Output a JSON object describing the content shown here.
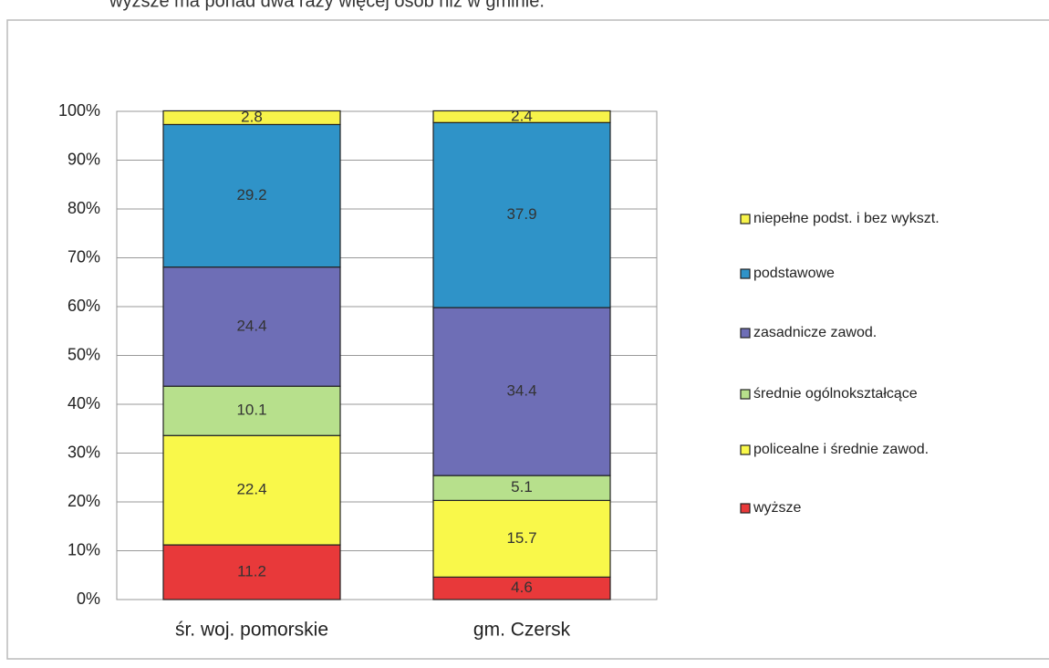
{
  "chart_data": {
    "type": "stacked_bar",
    "caption": "wyższe ma ponad dwa razy więcej osób niż w gminie.",
    "categories": [
      "śr. woj. pomorskie",
      "gm. Czersk"
    ],
    "series": [
      {
        "name": "wyższe",
        "color": "#e8393a",
        "values": [
          11.2,
          4.6
        ]
      },
      {
        "name": "policealne i średnie zawod.",
        "color": "#f9f84a",
        "values": [
          22.4,
          15.7
        ]
      },
      {
        "name": "średnie ogólnokształcące",
        "color": "#b7e08c",
        "values": [
          10.1,
          5.1
        ]
      },
      {
        "name": "zasadnicze zawod.",
        "color": "#6e6eb6",
        "values": [
          24.4,
          34.4
        ]
      },
      {
        "name": "podstawowe",
        "color": "#2f93c8",
        "values": [
          29.2,
          37.9
        ]
      },
      {
        "name": "niepełne podst. i bez wykszt.",
        "color": "#f7f34a",
        "values": [
          2.8,
          2.4
        ]
      }
    ],
    "ylim": [
      0,
      100
    ],
    "yticks": [
      {
        "value": 0,
        "label": "0%"
      },
      {
        "value": 10,
        "label": "10%"
      },
      {
        "value": 20,
        "label": "20%"
      },
      {
        "value": 30,
        "label": "30%"
      },
      {
        "value": 40,
        "label": "40%"
      },
      {
        "value": 50,
        "label": "50%"
      },
      {
        "value": 60,
        "label": "60%"
      },
      {
        "value": 70,
        "label": "70%"
      },
      {
        "value": 80,
        "label": "80%"
      },
      {
        "value": 90,
        "label": "90%"
      },
      {
        "value": 100,
        "label": "100%"
      }
    ],
    "grid": true,
    "legend": "right"
  }
}
